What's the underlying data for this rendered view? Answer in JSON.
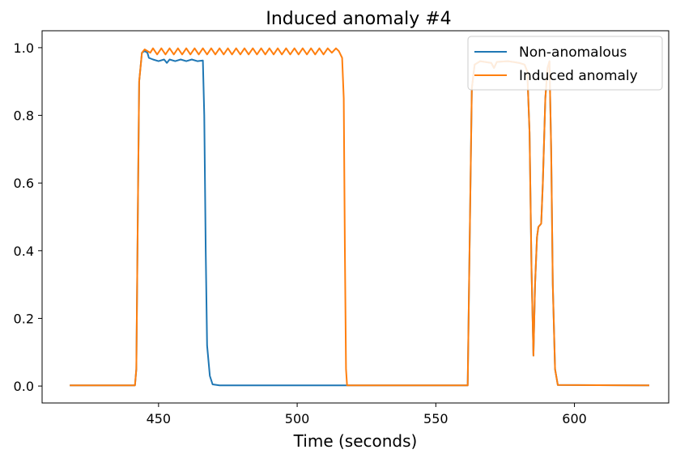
{
  "chart_data": {
    "type": "line",
    "title": "Induced anomaly #4",
    "xlabel": "Time (seconds)",
    "ylabel": "",
    "xlim": [
      408,
      634
    ],
    "ylim": [
      -0.05,
      1.05
    ],
    "xticks": [
      450,
      500,
      550,
      600
    ],
    "yticks": [
      0.0,
      0.2,
      0.4,
      0.6,
      0.8,
      1.0
    ],
    "xtick_labels": [
      "450",
      "500",
      "550",
      "600"
    ],
    "ytick_labels": [
      "0.0",
      "0.2",
      "0.4",
      "0.6",
      "0.8",
      "1.0"
    ],
    "grid": false,
    "legend_position": "top-right",
    "series": [
      {
        "name": "Non-anomalous",
        "color": "#1f77b4",
        "points": [
          [
            418,
            0.002
          ],
          [
            441.5,
            0.002
          ],
          [
            442,
            0.05
          ],
          [
            442.5,
            0.5
          ],
          [
            443,
            0.9
          ],
          [
            444,
            0.985
          ],
          [
            445,
            0.99
          ],
          [
            446,
            0.985
          ],
          [
            446.5,
            0.97
          ],
          [
            448,
            0.965
          ],
          [
            450,
            0.96
          ],
          [
            452,
            0.965
          ],
          [
            453,
            0.955
          ],
          [
            454,
            0.965
          ],
          [
            456,
            0.96
          ],
          [
            458,
            0.965
          ],
          [
            460,
            0.96
          ],
          [
            462,
            0.965
          ],
          [
            464,
            0.96
          ],
          [
            466,
            0.962
          ],
          [
            466.5,
            0.8
          ],
          [
            467,
            0.4
          ],
          [
            467.5,
            0.12
          ],
          [
            468.5,
            0.03
          ],
          [
            469.5,
            0.005
          ],
          [
            472,
            0.002
          ],
          [
            517,
            0.002
          ],
          [
            561.5,
            0.002
          ],
          [
            562,
            0.3
          ],
          [
            563,
            0.88
          ],
          [
            564,
            0.95
          ],
          [
            566,
            0.96
          ],
          [
            570,
            0.955
          ],
          [
            571,
            0.94
          ],
          [
            572,
            0.958
          ],
          [
            576,
            0.96
          ],
          [
            580,
            0.955
          ],
          [
            582,
            0.95
          ],
          [
            583,
            0.93
          ],
          [
            583.8,
            0.75
          ],
          [
            584.5,
            0.35
          ],
          [
            585.2,
            0.09
          ],
          [
            585.8,
            0.3
          ],
          [
            586.5,
            0.44
          ],
          [
            587,
            0.47
          ],
          [
            588,
            0.48
          ],
          [
            588.6,
            0.6
          ],
          [
            589.5,
            0.85
          ],
          [
            590.3,
            0.94
          ],
          [
            591,
            0.96
          ],
          [
            591.6,
            0.7
          ],
          [
            592.2,
            0.3
          ],
          [
            593,
            0.05
          ],
          [
            594,
            0.003
          ],
          [
            627,
            0.002
          ]
        ]
      },
      {
        "name": "Induced anomaly",
        "color": "#ff7f0e",
        "points": [
          [
            418,
            0.002
          ],
          [
            441.5,
            0.002
          ],
          [
            442,
            0.05
          ],
          [
            442.5,
            0.5
          ],
          [
            443,
            0.9
          ],
          [
            444,
            0.985
          ],
          [
            445,
            0.995
          ],
          [
            446,
            0.99
          ],
          [
            447,
            0.985
          ],
          [
            448,
            0.998
          ],
          [
            449.5,
            0.98
          ],
          [
            451,
            0.998
          ],
          [
            452.5,
            0.98
          ],
          [
            454,
            0.998
          ],
          [
            455.5,
            0.98
          ],
          [
            457,
            0.998
          ],
          [
            458.5,
            0.98
          ],
          [
            460,
            0.998
          ],
          [
            461.5,
            0.98
          ],
          [
            463,
            0.998
          ],
          [
            464.5,
            0.98
          ],
          [
            466,
            0.998
          ],
          [
            467.5,
            0.98
          ],
          [
            469,
            0.998
          ],
          [
            470.5,
            0.98
          ],
          [
            472,
            0.998
          ],
          [
            473.5,
            0.98
          ],
          [
            475,
            0.998
          ],
          [
            476.5,
            0.98
          ],
          [
            478,
            0.998
          ],
          [
            479.5,
            0.98
          ],
          [
            481,
            0.998
          ],
          [
            482.5,
            0.98
          ],
          [
            484,
            0.998
          ],
          [
            485.5,
            0.98
          ],
          [
            487,
            0.998
          ],
          [
            488.5,
            0.98
          ],
          [
            490,
            0.998
          ],
          [
            491.5,
            0.98
          ],
          [
            493,
            0.998
          ],
          [
            494.5,
            0.98
          ],
          [
            496,
            0.998
          ],
          [
            497.5,
            0.98
          ],
          [
            499,
            0.998
          ],
          [
            500.5,
            0.98
          ],
          [
            502,
            0.998
          ],
          [
            503.5,
            0.98
          ],
          [
            505,
            0.998
          ],
          [
            506.5,
            0.98
          ],
          [
            508,
            0.998
          ],
          [
            509.5,
            0.98
          ],
          [
            511,
            0.998
          ],
          [
            512.5,
            0.985
          ],
          [
            514,
            0.998
          ],
          [
            515,
            0.99
          ],
          [
            516.2,
            0.97
          ],
          [
            516.8,
            0.85
          ],
          [
            517.2,
            0.4
          ],
          [
            517.6,
            0.05
          ],
          [
            518,
            0.002
          ],
          [
            561.5,
            0.002
          ],
          [
            562,
            0.3
          ],
          [
            563,
            0.88
          ],
          [
            564,
            0.95
          ],
          [
            566,
            0.96
          ],
          [
            570,
            0.955
          ],
          [
            571,
            0.94
          ],
          [
            572,
            0.958
          ],
          [
            576,
            0.96
          ],
          [
            580,
            0.955
          ],
          [
            582,
            0.95
          ],
          [
            583,
            0.93
          ],
          [
            583.8,
            0.75
          ],
          [
            584.5,
            0.35
          ],
          [
            585.2,
            0.09
          ],
          [
            585.8,
            0.3
          ],
          [
            586.5,
            0.44
          ],
          [
            587,
            0.47
          ],
          [
            588,
            0.48
          ],
          [
            588.6,
            0.6
          ],
          [
            589.5,
            0.85
          ],
          [
            590.3,
            0.94
          ],
          [
            591,
            0.96
          ],
          [
            591.6,
            0.7
          ],
          [
            592.2,
            0.3
          ],
          [
            593,
            0.05
          ],
          [
            594,
            0.003
          ],
          [
            627,
            0.002
          ]
        ]
      }
    ]
  }
}
